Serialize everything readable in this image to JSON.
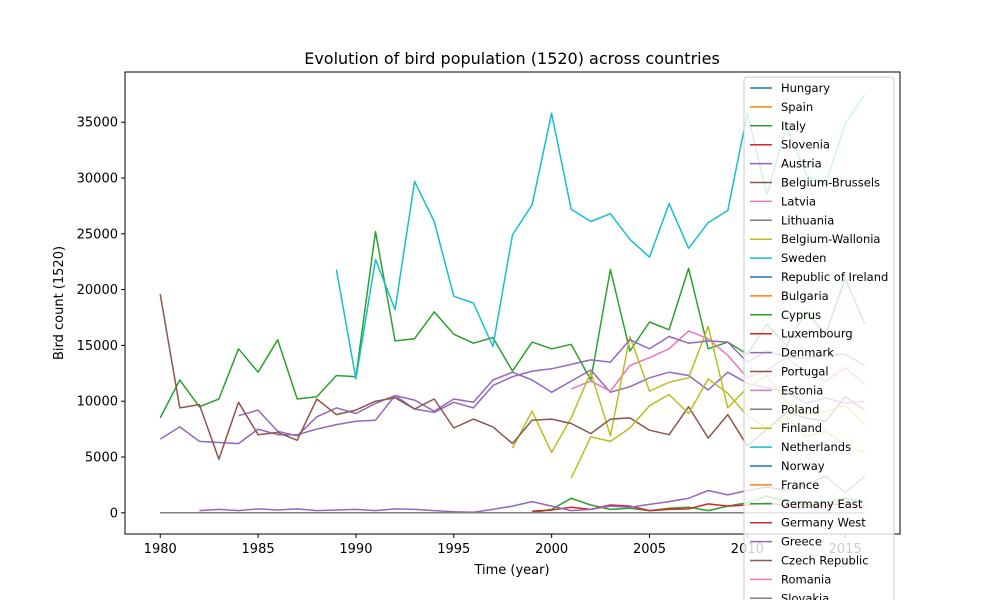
{
  "chart_data": {
    "type": "line",
    "title": "Evolution of bird population (1520) across countries",
    "xlabel": "Time (year)",
    "ylabel": "Bird count (1520)",
    "xlim": [
      1978.2,
      2017.8
    ],
    "ylim": [
      -1900,
      39500
    ],
    "xticks": [
      1980,
      1985,
      1990,
      1995,
      2000,
      2005,
      2010,
      2015
    ],
    "yticks": [
      0,
      5000,
      10000,
      15000,
      20000,
      25000,
      30000,
      35000
    ],
    "grid": false,
    "legend_position": "upper right",
    "series": [
      {
        "name": "Hungary",
        "color": "#1f77b4",
        "x": [],
        "y": []
      },
      {
        "name": "Spain",
        "color": "#ff7f0e",
        "x": [],
        "y": []
      },
      {
        "name": "Italy",
        "color": "#2ca02c",
        "x": [
          1980,
          1981,
          1982,
          1983,
          1984,
          1985,
          1986,
          1987,
          1988,
          1989,
          1990,
          1991,
          1992,
          1993,
          1994,
          1995,
          1996,
          1997,
          1998,
          1999,
          2000,
          2001,
          2002,
          2003,
          2004,
          2005,
          2006,
          2007,
          2008,
          2009,
          2010,
          2011,
          2012,
          2013,
          2014,
          2015,
          2016
        ],
        "y": [
          8500,
          11900,
          9500,
          10200,
          14700,
          12600,
          15500,
          10200,
          10400,
          12300,
          12200,
          25200,
          15400,
          15600,
          18000,
          16000,
          15200,
          15700,
          12700,
          15300,
          14700,
          15100,
          11900,
          21800,
          14500,
          17100,
          16400,
          21900,
          14700,
          15300,
          14200,
          16900,
          15000,
          18000,
          16000,
          21000,
          16900
        ]
      },
      {
        "name": "Slovenia",
        "color": "#d62728",
        "x": [],
        "y": []
      },
      {
        "name": "Austria",
        "color": "#9467bd",
        "x": [
          1984,
          1985,
          1986,
          1987,
          1988,
          1989,
          1990,
          1991,
          1992,
          1993,
          1994,
          1995,
          1996,
          1997,
          1998,
          1999,
          2000,
          2001,
          2002,
          2003,
          2004,
          2005,
          2006,
          2007,
          2008,
          2009,
          2010,
          2011,
          2012,
          2013,
          2014,
          2015,
          2016
        ],
        "y": [
          8700,
          9200,
          7300,
          6900,
          8600,
          9400,
          8900,
          9800,
          10500,
          10100,
          9100,
          10200,
          9900,
          11900,
          12600,
          11900,
          10800,
          11800,
          12800,
          10800,
          11300,
          12100,
          12600,
          12300,
          11000,
          12600,
          11600,
          11200,
          10900,
          9800,
          10300,
          9800,
          10000
        ]
      },
      {
        "name": "Belgium-Brussels",
        "color": "#8c564b",
        "x": [],
        "y": []
      },
      {
        "name": "Latvia",
        "color": "#e377c2",
        "x": [
          2001,
          2002,
          2003,
          2004,
          2005,
          2006,
          2007,
          2008,
          2009,
          2010,
          2011,
          2012,
          2013,
          2014,
          2015,
          2016
        ],
        "y": [
          11100,
          11800,
          10900,
          13200,
          13900,
          14700,
          16300,
          15600,
          14100,
          12100,
          12800,
          13900,
          12600,
          11800,
          13000,
          11500
        ]
      },
      {
        "name": "Lithuania",
        "color": "#7f7f7f",
        "x": [],
        "y": []
      },
      {
        "name": "Belgium-Wallonia",
        "color": "#bcbd22",
        "x": [
          1998,
          1999,
          2000,
          2001,
          2002,
          2003,
          2004,
          2005,
          2006,
          2007,
          2008,
          2009,
          2010,
          2011,
          2012,
          2013,
          2014,
          2015,
          2016
        ],
        "y": [
          5800,
          9100,
          5400,
          8500,
          12600,
          6900,
          15800,
          10900,
          11700,
          12100,
          16700,
          9400,
          11200,
          12300,
          9900,
          8900,
          9100,
          9600,
          7900
        ]
      },
      {
        "name": "Sweden",
        "color": "#17becf",
        "x": [
          1989,
          1990,
          1991,
          1992,
          1993,
          1994,
          1995,
          1996,
          1997,
          1998,
          1999,
          2000,
          2001,
          2002,
          2003,
          2004,
          2005,
          2006,
          2007,
          2008,
          2009,
          2010,
          2011,
          2012,
          2013,
          2014,
          2015,
          2016
        ],
        "y": [
          21800,
          12000,
          22700,
          18200,
          29700,
          26100,
          19400,
          18800,
          14900,
          24900,
          27600,
          35800,
          27200,
          26100,
          26800,
          24500,
          22900,
          27700,
          23700,
          26000,
          27100,
          35800,
          28500,
          34700,
          30300,
          29400,
          34900,
          37500
        ]
      },
      {
        "name": "Republic of Ireland",
        "color": "#1f77b4",
        "x": [],
        "y": []
      },
      {
        "name": "Bulgaria",
        "color": "#ff7f0e",
        "x": [],
        "y": []
      },
      {
        "name": "Cyprus",
        "color": "#2ca02c",
        "x": [
          1980,
          1981,
          1982,
          1983,
          1984,
          1985,
          1986,
          1987,
          1988,
          1989,
          1990,
          1991,
          1992,
          1993,
          1994,
          1995,
          1996,
          1997,
          1998,
          1999,
          2000,
          2001,
          2002,
          2003,
          2004,
          2005,
          2006,
          2007,
          2008,
          2009,
          2010,
          2011,
          2012,
          2013,
          2014,
          2015,
          2016
        ],
        "y": [
          0,
          0,
          0,
          0,
          0,
          0,
          0,
          0,
          0,
          0,
          0,
          0,
          0,
          0,
          0,
          0,
          0,
          0,
          0,
          0,
          300,
          1300,
          700,
          300,
          400,
          200,
          400,
          500,
          200,
          600,
          900,
          1500,
          1000,
          700,
          900,
          1300,
          1000
        ]
      },
      {
        "name": "Luxembourg",
        "color": "#d62728",
        "x": [
          1999,
          2000,
          2001,
          2002,
          2003,
          2004,
          2005,
          2006,
          2007,
          2008,
          2009,
          2010,
          2011,
          2012,
          2013,
          2014,
          2015,
          2016
        ],
        "y": [
          150,
          250,
          500,
          300,
          700,
          600,
          200,
          300,
          350,
          800,
          600,
          700,
          900,
          600,
          500,
          700,
          800,
          600
        ]
      },
      {
        "name": "Denmark",
        "color": "#9467bd",
        "x": [
          1980,
          1981,
          1982,
          1983,
          1984,
          1985,
          1986,
          1987,
          1988,
          1989,
          1990,
          1991,
          1992,
          1993,
          1994,
          1995,
          1996,
          1997,
          1998,
          1999,
          2000,
          2001,
          2002,
          2003,
          2004,
          2005,
          2006,
          2007,
          2008,
          2009,
          2010,
          2011,
          2012,
          2013,
          2014,
          2015,
          2016
        ],
        "y": [
          6600,
          7700,
          6400,
          6300,
          6200,
          7500,
          7000,
          7000,
          7500,
          7900,
          8200,
          8300,
          10500,
          9300,
          9000,
          9900,
          9400,
          11400,
          12200,
          12700,
          12900,
          13300,
          13700,
          13500,
          15500,
          14700,
          15800,
          15200,
          15400,
          15300,
          13500,
          14500,
          14000,
          13800,
          14200,
          14200,
          13200
        ]
      },
      {
        "name": "Portugal",
        "color": "#8c564b",
        "x": [
          1980,
          1981,
          1982,
          1983,
          1984,
          1985,
          1986,
          1987,
          1988,
          1989,
          1990,
          1991,
          1992,
          1993,
          1994,
          1995,
          1996,
          1997,
          1998,
          1999,
          2000,
          2001,
          2002,
          2003,
          2004,
          2005,
          2006,
          2007,
          2008,
          2009,
          2010,
          2011,
          2012,
          2013,
          2014,
          2015,
          2016
        ],
        "y": [
          19600,
          9400,
          9700,
          4800,
          9900,
          7000,
          7200,
          6500,
          10200,
          8800,
          9200,
          10000,
          10300,
          9300,
          10200,
          7600,
          8400,
          7700,
          6200,
          8300,
          8400,
          8000,
          7100,
          8400,
          8500,
          7400,
          7000,
          9500,
          6700,
          8800,
          6000,
          7500,
          9000,
          8500,
          8200,
          10400,
          9200
        ]
      },
      {
        "name": "Estonia",
        "color": "#e377c2",
        "x": [],
        "y": []
      },
      {
        "name": "Poland",
        "color": "#7f7f7f",
        "x": [],
        "y": []
      },
      {
        "name": "Finland",
        "color": "#bcbd22",
        "x": [
          2001,
          2002,
          2003,
          2004,
          2005,
          2006,
          2007,
          2008,
          2009,
          2010,
          2011,
          2012,
          2013,
          2014,
          2015,
          2016
        ],
        "y": [
          3100,
          6800,
          6400,
          7600,
          9600,
          10600,
          8900,
          12000,
          10700,
          8700,
          7600,
          8600,
          6800,
          7300,
          6100,
          5400
        ]
      },
      {
        "name": "Netherlands",
        "color": "#17becf",
        "x": [],
        "y": []
      },
      {
        "name": "Norway",
        "color": "#1f77b4",
        "x": [],
        "y": []
      },
      {
        "name": "France",
        "color": "#ff7f0e",
        "x": [],
        "y": []
      },
      {
        "name": "Germany East",
        "color": "#2ca02c",
        "x": [],
        "y": []
      },
      {
        "name": "Germany West",
        "color": "#d62728",
        "x": [],
        "y": []
      },
      {
        "name": "Greece",
        "color": "#9467bd",
        "x": [
          1982,
          1983,
          1984,
          1985,
          1986,
          1987,
          1988,
          1989,
          1990,
          1991,
          1992,
          1993,
          1994,
          1995,
          1996,
          1997,
          1998,
          1999,
          2000,
          2001,
          2002,
          2003,
          2004,
          2005,
          2006,
          2007,
          2008,
          2009,
          2010,
          2011,
          2012,
          2013,
          2014,
          2015,
          2016
        ],
        "y": [
          200,
          300,
          200,
          350,
          250,
          350,
          200,
          250,
          300,
          200,
          350,
          300,
          200,
          100,
          50,
          300,
          600,
          1000,
          600,
          200,
          300,
          600,
          500,
          750,
          1000,
          1300,
          2000,
          1600,
          2000,
          2300,
          2000,
          2500,
          3300,
          1800,
          3300
        ]
      },
      {
        "name": "Czech Republic",
        "color": "#8c564b",
        "x": [],
        "y": []
      },
      {
        "name": "Romania",
        "color": "#e377c2",
        "x": [],
        "y": []
      },
      {
        "name": "Slovakia",
        "color": "#7f7f7f",
        "x": [
          1980,
          2016
        ],
        "y": [
          0,
          0
        ]
      }
    ]
  }
}
